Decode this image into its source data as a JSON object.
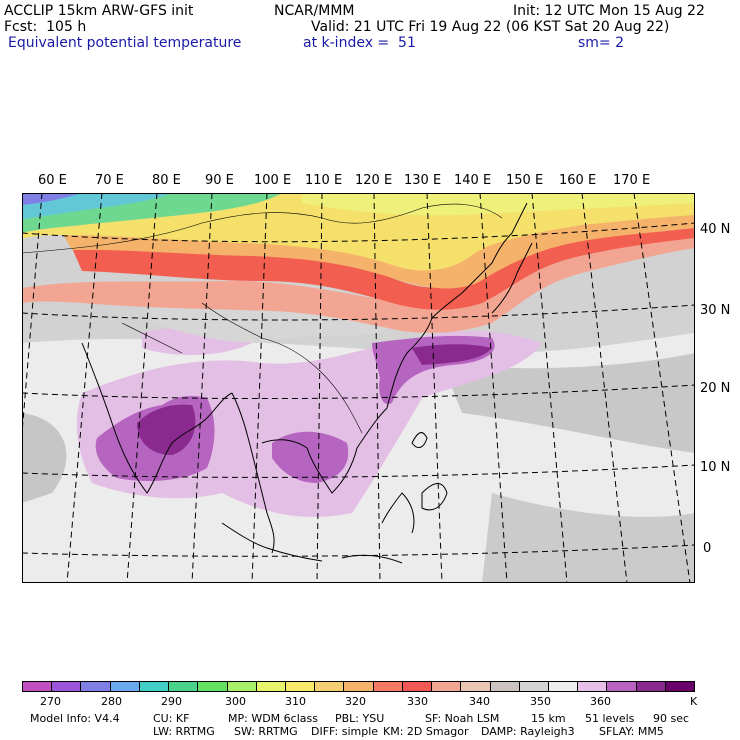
{
  "header": {
    "title": "ACCLIP 15km ARW-GFS init",
    "org": "NCAR/MMM",
    "init": "Init: 12 UTC Mon 15 Aug 22",
    "fcst": "Fcst:  105 h",
    "valid": "Valid: 21 UTC Fri 19 Aug 22 (06 KST Sat 20 Aug 22)",
    "field": "Equivalent potential temperature",
    "level": "at k-index =  51",
    "smooth": "sm= 2"
  },
  "map": {
    "lon_labels": [
      "60 E",
      "70 E",
      "80 E",
      "90 E",
      "100 E",
      "110 E",
      "120 E",
      "130 E",
      "140 E",
      "150 E",
      "160 E",
      "170 E"
    ],
    "lat_labels": [
      "40 N",
      "30 N",
      "20 N",
      "10 N",
      "0"
    ]
  },
  "colorbar": {
    "colors": [
      "#c04fc0",
      "#9a55d8",
      "#7f7fe6",
      "#6aa8f0",
      "#3fcfc6",
      "#4ad18a",
      "#62e062",
      "#a6f06a",
      "#e6f56c",
      "#f7e96a",
      "#f6cf72",
      "#f5b26b",
      "#f77a62",
      "#f25854",
      "#f2a592",
      "#ecc6b2",
      "#cbc3bf",
      "#d4d4d4",
      "#eeeeee",
      "#e6c0e6",
      "#b864c0",
      "#8a2a8e",
      "#6a006a"
    ],
    "labels": [
      "270",
      "280",
      "290",
      "300",
      "310",
      "320",
      "330",
      "340",
      "350",
      "360"
    ],
    "unit": "K"
  },
  "footer": {
    "line1": [
      "Model Info: V4.4",
      "CU: KF",
      "MP: WDM 6class",
      "PBL: YSU",
      "SF: Noah LSM",
      "15 km",
      "51 levels",
      "90 sec"
    ],
    "line2": [
      "LW: RRTMG",
      "SW: RRTMG",
      "DIFF: simple",
      "KM: 2D Smagor",
      "DAMP: Rayleigh3",
      "SFLAY: MM5"
    ]
  }
}
